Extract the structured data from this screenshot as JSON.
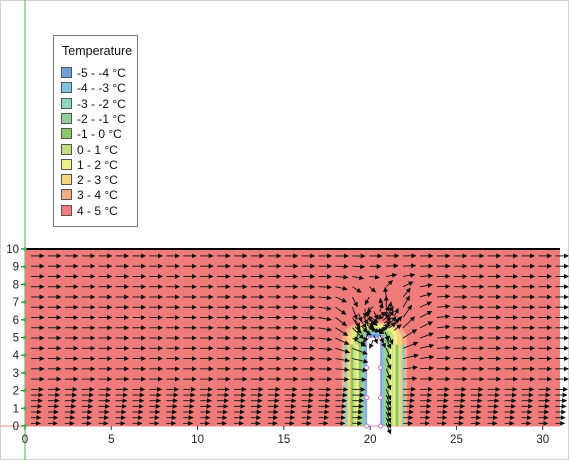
{
  "chart_data": {
    "type": "heatmap",
    "title": "",
    "xlabel": "",
    "ylabel": "",
    "xlim": [
      0,
      31
    ],
    "ylim": [
      0,
      10
    ],
    "x_ticks": [
      "0",
      "5",
      "10",
      "15",
      "20",
      "25",
      "30"
    ],
    "y_ticks": [
      "0",
      "1",
      "2",
      "3",
      "4",
      "5",
      "6",
      "7",
      "8",
      "9",
      "10"
    ],
    "legend": {
      "title": "Temperature",
      "placement": "top-left",
      "entries": [
        {
          "label": "-5 - -4 °C",
          "color": "#6f9fd8"
        },
        {
          "label": "-4 - -3 °C",
          "color": "#7fc4e0"
        },
        {
          "label": "-3 - -2 °C",
          "color": "#8fd3c3"
        },
        {
          "label": "-2 - -1 °C",
          "color": "#92d19a"
        },
        {
          "label": "-1 - 0 °C",
          "color": "#8cc765"
        },
        {
          "label": "0 - 1 °C",
          "color": "#bfe07a"
        },
        {
          "label": "1 - 2 °C",
          "color": "#eef08a"
        },
        {
          "label": "2 - 3 °C",
          "color": "#f7d57c"
        },
        {
          "label": "3 - 4 °C",
          "color": "#f6ac84"
        },
        {
          "label": "4 - 5 °C",
          "color": "#ef7b7b"
        }
      ]
    },
    "domain_fill_color": "#ef7b7b",
    "obstacle": {
      "x_range": [
        19.8,
        20.6
      ],
      "y_range": [
        0,
        5.0
      ]
    },
    "cold_plume": {
      "x_range": [
        18.5,
        22.3
      ],
      "y_top": 5.9
    },
    "flow_field": {
      "direction": "left-to-right",
      "vortex_center": [
        20.3,
        5.8
      ]
    }
  }
}
